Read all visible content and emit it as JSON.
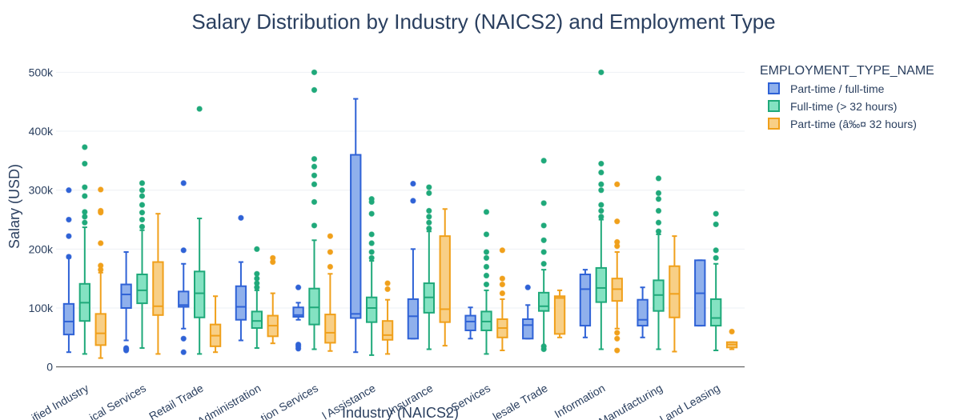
{
  "chart_data": {
    "type": "box",
    "title": "Salary Distribution by Industry (NAICS2) and Employment Type",
    "xlabel": "Industry (NAICS2)",
    "ylabel": "Salary (USD)",
    "ylim": [
      -10000,
      525000
    ],
    "yticks": [
      0,
      100000,
      200000,
      300000,
      400000,
      500000
    ],
    "ytick_labels": [
      "0",
      "100k",
      "200k",
      "300k",
      "400k",
      "500k"
    ],
    "grid": true,
    "legend_title": "EMPLOYMENT_TYPE_NAME",
    "legend_position": "top-right",
    "categories": [
      "Unclassified Industry",
      "Professional, Scientific, and Technical Services",
      "Retail Trade",
      "Administrative and Support and Waste Management and Remediation Services",
      "Educational Services",
      "Health Care and Social Assistance",
      "Finance and Insurance",
      "Other Services (except Public Administration)",
      "Wholesale Trade",
      "Information",
      "Manufacturing",
      "Real Estate and Rental and Leasing"
    ],
    "tick_labels": [
      "ified Industry",
      "ical Services",
      "Retail Trade",
      "Administration",
      "tion Services",
      "l Assistance",
      "Insurance",
      "r Services",
      "lesale Trade",
      "Information",
      "Manufacturing",
      "l and Leasing"
    ],
    "series": [
      {
        "name": "Part-time / full-time",
        "color": "#2f62d6",
        "fill": "#8fb0ec",
        "boxes": [
          {
            "q1": 55000,
            "median": 77000,
            "q3": 107000,
            "lower": 25000,
            "upper": 185000,
            "outliers": [
              187000,
              222000,
              250000,
              300000
            ]
          },
          {
            "q1": 100000,
            "median": 123000,
            "q3": 140000,
            "lower": 45000,
            "upper": 195000,
            "outliers": [
              28000,
              30000,
              32000
            ]
          },
          {
            "q1": 102000,
            "median": 105000,
            "q3": 128000,
            "lower": 65000,
            "upper": 175000,
            "outliers": [
              25000,
              48000,
              198000,
              312000
            ]
          },
          {
            "q1": 80000,
            "median": 102000,
            "q3": 137000,
            "lower": 45000,
            "upper": 178000,
            "outliers": [
              253000
            ]
          },
          {
            "q1": 85000,
            "median": 88000,
            "q3": 101000,
            "lower": 80000,
            "upper": 109000,
            "outliers": [
              31000,
              35000,
              38000,
              135000
            ]
          },
          {
            "q1": 83000,
            "median": 90000,
            "q3": 360000,
            "lower": 25000,
            "upper": 455000,
            "outliers": []
          },
          {
            "q1": 48000,
            "median": 86000,
            "q3": 115000,
            "lower": 48000,
            "upper": 200000,
            "outliers": [
              282000,
              311000
            ]
          },
          {
            "q1": 62000,
            "median": 77000,
            "q3": 87000,
            "lower": 48000,
            "upper": 101000,
            "outliers": []
          },
          {
            "q1": 48000,
            "median": 71000,
            "q3": 81000,
            "lower": 48000,
            "upper": 105000,
            "outliers": [
              135000
            ]
          },
          {
            "q1": 70000,
            "median": 132000,
            "q3": 157000,
            "lower": 50000,
            "upper": 165000,
            "outliers": []
          },
          {
            "q1": 70000,
            "median": 80000,
            "q3": 114000,
            "lower": 50000,
            "upper": 135000,
            "outliers": []
          },
          {
            "q1": 70000,
            "median": 125000,
            "q3": 181000,
            "lower": 70000,
            "upper": 181000,
            "outliers": []
          }
        ]
      },
      {
        "name": "Full-time (> 32 hours)",
        "color": "#1fa97a",
        "fill": "#84e2c2",
        "boxes": [
          {
            "q1": 78000,
            "median": 109000,
            "q3": 141000,
            "lower": 22000,
            "upper": 237000,
            "outliers": [
              245000,
              255000,
              263000,
              290000,
              305000,
              345000,
              373000
            ]
          },
          {
            "q1": 108000,
            "median": 130000,
            "q3": 157000,
            "lower": 32000,
            "upper": 232000,
            "outliers": [
              238000,
              250000,
              262000,
              275000,
              290000,
              300000,
              312000
            ]
          },
          {
            "q1": 84000,
            "median": 125000,
            "q3": 162000,
            "lower": 22000,
            "upper": 252000,
            "outliers": [
              438000
            ]
          },
          {
            "q1": 66000,
            "median": 78000,
            "q3": 94000,
            "lower": 32000,
            "upper": 130000,
            "outliers": [
              135000,
              142000,
              150000,
              158000,
              200000
            ]
          },
          {
            "q1": 72000,
            "median": 101000,
            "q3": 133000,
            "lower": 30000,
            "upper": 215000,
            "outliers": [
              240000,
              280000,
              310000,
              325000,
              340000,
              353000,
              470000,
              500000
            ]
          },
          {
            "q1": 76000,
            "median": 100000,
            "q3": 118000,
            "lower": 20000,
            "upper": 180000,
            "outliers": [
              185000,
              195000,
              210000,
              225000,
              260000,
              280000,
              285000
            ]
          },
          {
            "q1": 92000,
            "median": 118000,
            "q3": 142000,
            "lower": 30000,
            "upper": 230000,
            "outliers": [
              235000,
              245000,
              255000,
              265000,
              295000,
              305000
            ]
          },
          {
            "q1": 62000,
            "median": 77000,
            "q3": 94000,
            "lower": 22000,
            "upper": 130000,
            "outliers": [
              140000,
              155000,
              170000,
              185000,
              195000,
              225000,
              263000
            ]
          },
          {
            "q1": 95000,
            "median": 103000,
            "q3": 126000,
            "lower": 35000,
            "upper": 165000,
            "outliers": [
              30000,
              35000,
              175000,
              195000,
              215000,
              240000,
              278000,
              350000
            ]
          },
          {
            "q1": 110000,
            "median": 134000,
            "q3": 168000,
            "lower": 30000,
            "upper": 250000,
            "outliers": [
              255000,
              265000,
              275000,
              300000,
              310000,
              330000,
              345000,
              500000
            ]
          },
          {
            "q1": 95000,
            "median": 122000,
            "q3": 147000,
            "lower": 30000,
            "upper": 225000,
            "outliers": [
              230000,
              245000,
              265000,
              285000,
              295000,
              320000
            ]
          },
          {
            "q1": 70000,
            "median": 83000,
            "q3": 115000,
            "lower": 28000,
            "upper": 175000,
            "outliers": [
              185000,
              198000,
              242000,
              260000
            ]
          }
        ]
      },
      {
        "name": "Part-time (â‰¤ 32 hours)",
        "color": "#f0a01b",
        "fill": "#f8cf86",
        "boxes": [
          {
            "q1": 37000,
            "median": 57000,
            "q3": 90000,
            "lower": 15000,
            "upper": 160000,
            "outliers": [
              165000,
              172000,
              210000,
              262000,
              265000,
              301000
            ]
          },
          {
            "q1": 88000,
            "median": 103000,
            "q3": 178000,
            "lower": 22000,
            "upper": 260000,
            "outliers": []
          },
          {
            "q1": 35000,
            "median": 53000,
            "q3": 72000,
            "lower": 25000,
            "upper": 120000,
            "outliers": []
          },
          {
            "q1": 52000,
            "median": 70000,
            "q3": 87000,
            "lower": 40000,
            "upper": 125000,
            "outliers": [
              178000,
              185000
            ]
          },
          {
            "q1": 41000,
            "median": 58000,
            "q3": 89000,
            "lower": 27000,
            "upper": 158000,
            "outliers": [
              170000,
              195000,
              222000
            ]
          },
          {
            "q1": 46000,
            "median": 54000,
            "q3": 78000,
            "lower": 22000,
            "upper": 114000,
            "outliers": [
              132000,
              142000
            ]
          },
          {
            "q1": 76000,
            "median": 98000,
            "q3": 222000,
            "lower": 36000,
            "upper": 268000,
            "outliers": []
          },
          {
            "q1": 50000,
            "median": 66000,
            "q3": 81000,
            "lower": 28000,
            "upper": 115000,
            "outliers": [
              125000,
              140000,
              150000,
              198000
            ]
          },
          {
            "q1": 56000,
            "median": 117000,
            "q3": 120000,
            "lower": 50000,
            "upper": 130000,
            "outliers": []
          },
          {
            "q1": 112000,
            "median": 132000,
            "q3": 150000,
            "lower": 65000,
            "upper": 195000,
            "outliers": [
              28000,
              48000,
              58000,
              205000,
              212000,
              247000,
              310000
            ]
          },
          {
            "q1": 84000,
            "median": 124000,
            "q3": 171000,
            "lower": 26000,
            "upper": 222000,
            "outliers": []
          },
          {
            "q1": 33000,
            "median": 38000,
            "q3": 42000,
            "lower": 30000,
            "upper": 42000,
            "outliers": [
              60000
            ]
          }
        ]
      }
    ]
  }
}
